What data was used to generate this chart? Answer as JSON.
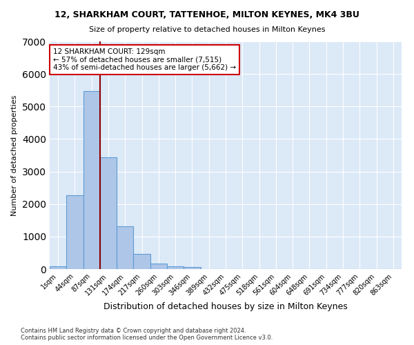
{
  "title_line1": "12, SHARKHAM COURT, TATTENHOE, MILTON KEYNES, MK4 3BU",
  "title_line2": "Size of property relative to detached houses in Milton Keynes",
  "xlabel": "Distribution of detached houses by size in Milton Keynes",
  "ylabel": "Number of detached properties",
  "footnote1": "Contains HM Land Registry data © Crown copyright and database right 2024.",
  "footnote2": "Contains public sector information licensed under the Open Government Licence v3.0.",
  "bar_labels": [
    "1sqm",
    "44sqm",
    "87sqm",
    "131sqm",
    "174sqm",
    "217sqm",
    "260sqm",
    "303sqm",
    "346sqm",
    "389sqm",
    "432sqm",
    "475sqm",
    "518sqm",
    "561sqm",
    "604sqm",
    "648sqm",
    "691sqm",
    "734sqm",
    "777sqm",
    "820sqm",
    "863sqm"
  ],
  "bar_values": [
    75,
    2280,
    5470,
    3440,
    1310,
    470,
    160,
    90,
    55,
    0,
    0,
    0,
    0,
    0,
    0,
    0,
    0,
    0,
    0,
    0,
    0
  ],
  "bar_color": "#aec6e8",
  "bar_edge_color": "#5b9bd5",
  "background_color": "#dce9f7",
  "fig_background_color": "#ffffff",
  "grid_color": "#ffffff",
  "vline_color": "#8b0000",
  "annotation_text": "12 SHARKHAM COURT: 129sqm\n← 57% of detached houses are smaller (7,515)\n43% of semi-detached houses are larger (5,662) →",
  "annotation_box_color": "#ffffff",
  "annotation_box_edge_color": "#cc0000",
  "ylim": [
    0,
    7000
  ],
  "yticks": [
    0,
    1000,
    2000,
    3000,
    4000,
    5000,
    6000,
    7000
  ]
}
